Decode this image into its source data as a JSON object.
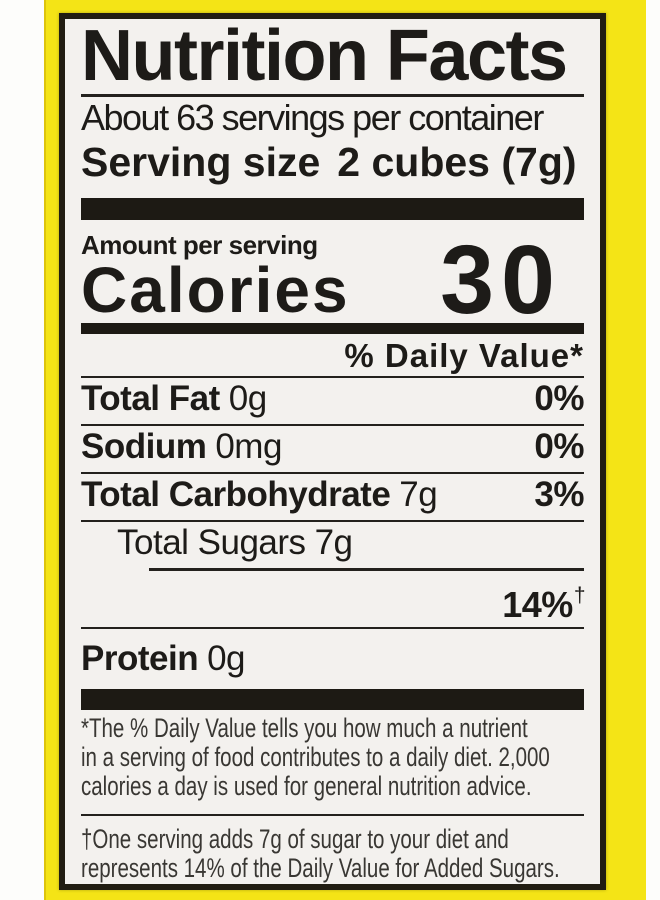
{
  "nutrition_label": {
    "title": "Nutrition Facts",
    "servings_per_container": "About 63 servings per container",
    "serving_size": {
      "label": "Serving size",
      "value": "2 cubes (7g)"
    },
    "amount_per_serving": "Amount per serving",
    "calories": {
      "label": "Calories",
      "value": "30"
    },
    "daily_value_header": "% Daily Value*",
    "nutrients": [
      {
        "name": "Total Fat",
        "amount": "0g",
        "daily_value": "0%"
      },
      {
        "name": "Sodium",
        "amount": "0mg",
        "daily_value": "0%"
      },
      {
        "name": "Total Carbohydrate",
        "amount": "7g",
        "daily_value": "3%"
      },
      {
        "name": "Total Sugars",
        "amount": "7g",
        "daily_value": ""
      },
      {
        "name": "",
        "amount": "",
        "daily_value": "14%",
        "daily_value_mark": "†"
      },
      {
        "name": "Protein",
        "amount": "0g",
        "daily_value": ""
      }
    ],
    "footnotes": {
      "daily_value": {
        "lines": [
          "*The % Daily Value tells you how much a nutrient",
          "in a serving of food contributes to a daily diet. 2,000",
          "calories a day is used for general nutrition advice."
        ]
      },
      "added_sugars": {
        "lines": [
          "†One serving adds 7g of sugar to your diet and",
          "represents 14% of the Daily Value for Added Sugars."
        ]
      }
    }
  },
  "colors": {
    "package_yellow": "#f4e416",
    "label_background": "#f3f1ee",
    "label_border": "#211d12",
    "text": "#1d1b18"
  }
}
